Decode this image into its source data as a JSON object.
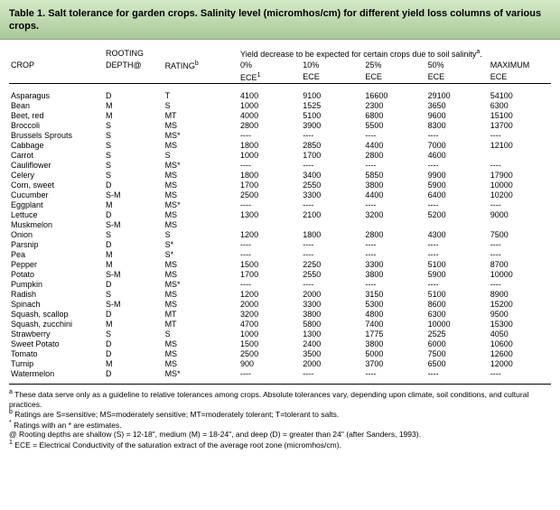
{
  "title": "Table 1.   Salt tolerance for garden crops.  Salinity level (micromhos/cm) for different yield loss columns of various crops.",
  "headers": {
    "rooting": "ROOTING",
    "crop": "CROP",
    "depth": "DEPTH@",
    "rating": "RATING",
    "yield": "Yield decrease to be expected for certain crops due to soil salinity",
    "p0": "0%",
    "p10": "10%",
    "p25": "25%",
    "p50": "50%",
    "pmax": "MAXIMUM",
    "ece": "ECE",
    "sup_a": "a",
    "sup_b": "b",
    "sup_1": "1"
  },
  "dash": "----",
  "rows": [
    [
      "Asparagus",
      "D",
      "T",
      "4100",
      "9100",
      "16600",
      "29100",
      "54100"
    ],
    [
      "Bean",
      "M",
      "S",
      "1000",
      "1525",
      "2300",
      "3650",
      "6300"
    ],
    [
      "Beet, red",
      "M",
      "MT",
      "4000",
      "5100",
      "6800",
      "9600",
      "15100"
    ],
    [
      "Broccoli",
      "S",
      "MS",
      "2800",
      "3900",
      "5500",
      "8300",
      "13700"
    ],
    [
      "Brussels Sprouts",
      "S",
      "MS*",
      "----",
      "----",
      "----",
      "----",
      "----"
    ],
    [
      "Cabbage",
      "S",
      "MS",
      "1800",
      "2850",
      "4400",
      "7000",
      "12100"
    ],
    [
      "Carrot",
      "S",
      "S",
      "1000",
      "1700",
      "2800",
      "4600",
      ""
    ],
    [
      "Cauliflower",
      "S",
      "MS*",
      "----",
      "----",
      "----",
      "----",
      "----"
    ],
    [
      "Celery",
      "S",
      "MS",
      "1800",
      "3400",
      "5850",
      "9900",
      "17900"
    ],
    [
      "Corn, sweet",
      "D",
      "MS",
      "1700",
      "2550",
      "3800",
      "5900",
      "10000"
    ],
    [
      "Cucumber",
      "S-M",
      "MS",
      "2500",
      "3300",
      "4400",
      "6400",
      "10200"
    ],
    [
      "Eggplant",
      "M",
      "MS*",
      "----",
      "----",
      "----",
      "----",
      "----"
    ],
    [
      "Lettuce",
      "D",
      "MS",
      "1300",
      "2100",
      "3200",
      "5200",
      "9000"
    ],
    [
      "Muskmelon",
      "S-M",
      "MS",
      "",
      "",
      "",
      "",
      ""
    ],
    [
      "Onion",
      "S",
      "S",
      "1200",
      "1800",
      "2800",
      "4300",
      "7500"
    ],
    [
      "Parsnip",
      "D",
      "S*",
      "----",
      "----",
      "----",
      "----",
      "----"
    ],
    [
      "Pea",
      "M",
      "S*",
      "----",
      "----",
      "----",
      "----",
      "----"
    ],
    [
      "Pepper",
      "M",
      "MS",
      "1500",
      "2250",
      "3300",
      "5100",
      "8700"
    ],
    [
      "Potato",
      "S-M",
      "MS",
      "1700",
      "2550",
      "3800",
      "5900",
      "10000"
    ],
    [
      "Pumpkin",
      "D",
      "MS*",
      "----",
      "----",
      "----",
      "----",
      "----"
    ],
    [
      "Radish",
      "S",
      "MS",
      "1200",
      "2000",
      "3150",
      "5100",
      "8900"
    ],
    [
      "Spinach",
      "S-M",
      "MS",
      "2000",
      "3300",
      "5300",
      "8600",
      "15200"
    ],
    [
      "Squash, scallop",
      "D",
      "MT",
      "3200",
      "3800",
      "4800",
      "6300",
      "9500"
    ],
    [
      "Squash, zucchini",
      "M",
      "MT",
      "4700",
      "5800",
      "7400",
      "10000",
      "15300"
    ],
    [
      "Strawberry",
      "S",
      "S",
      "1000",
      "1300",
      "1775",
      "2525",
      "4050"
    ],
    [
      "Sweet Potato",
      "D",
      "MS",
      "1500",
      "2400",
      "3800",
      "6000",
      "10600"
    ],
    [
      "Tomato",
      "D",
      "MS",
      "2500",
      "3500",
      "5000",
      "7500",
      "12600"
    ],
    [
      "Turnip",
      "M",
      "MS",
      "900",
      "2000",
      "3700",
      "6500",
      "12000"
    ],
    [
      "Watermelon",
      "D",
      "MS*",
      "----",
      "----",
      "----",
      "----",
      "----"
    ]
  ],
  "foot": {
    "a": {
      "s": "a",
      "t": "These data serve only as a guideline to relative tolerances among crops.  Absolute tolerances vary, depending upon climate, soil conditions, and cultural practices."
    },
    "b": {
      "s": "b",
      "t": "Ratings are S=sensitive; MS=moderately sensitive; MT=moderately tolerant; T=tolerant to salts."
    },
    "star": {
      "s": "*",
      "t": "Ratings with an * are estimates."
    },
    "at": {
      "s": "@",
      "t": "Rooting depths are shallow (S) = 12-18\", medium (M) = 18-24\", and deep (D) = greater than 24\" (after Sanders, 1993)."
    },
    "one": {
      "s": "1",
      "t": "ECE = Electrical Conductivity of the saturation extract of the average root zone (micromhos/cm)."
    }
  }
}
